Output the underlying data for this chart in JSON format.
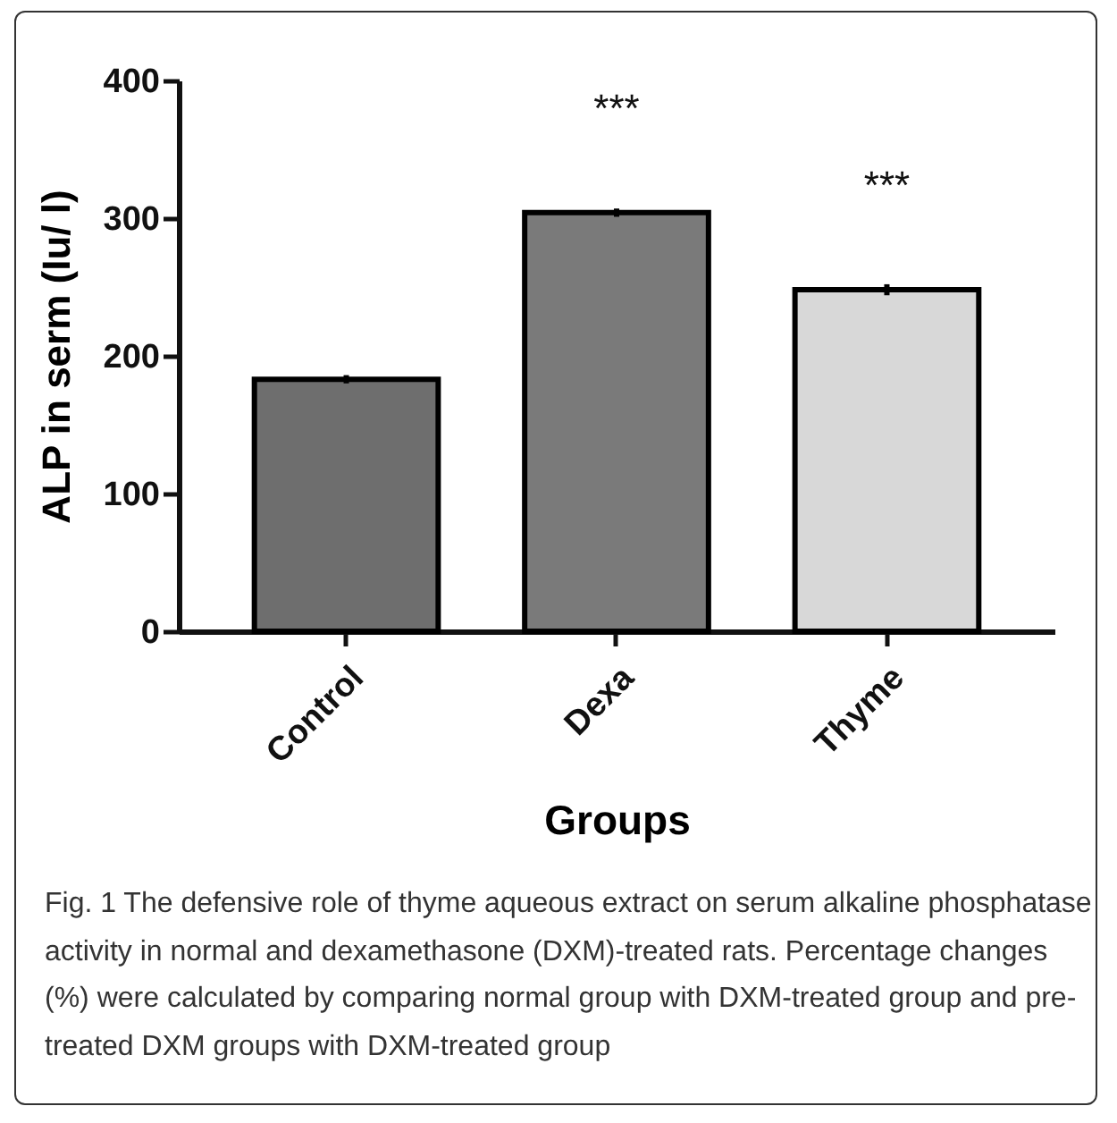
{
  "chart_data": {
    "type": "bar",
    "xlabel": "Groups",
    "ylabel": "ALP in serm (Iu/ l)",
    "categories": [
      "Control",
      "Dexa",
      "Thyme"
    ],
    "values": [
      183,
      304,
      248
    ],
    "errors": [
      3,
      3,
      4
    ],
    "colors": [
      "#6e6e6e",
      "#7a7a7a",
      "#d8d8d8"
    ],
    "ylim": [
      0,
      400
    ],
    "yticks": [
      0,
      100,
      200,
      300,
      400
    ],
    "grid": false,
    "annotations": [
      {
        "text": "***",
        "x": "Dexa",
        "y": 304
      },
      {
        "text": "***",
        "x": "Thyme",
        "y": 248
      },
      "Fig. 1 The defensive role of thyme aqueous extract on serum alkaline phosphatase activity in normal and dexamethasone (DXM)-treated rats. Percentage changes (%) were calculated by comparing normal group with DXM-treated group and pre-treated DXM groups with DXM-treated group"
    ]
  }
}
